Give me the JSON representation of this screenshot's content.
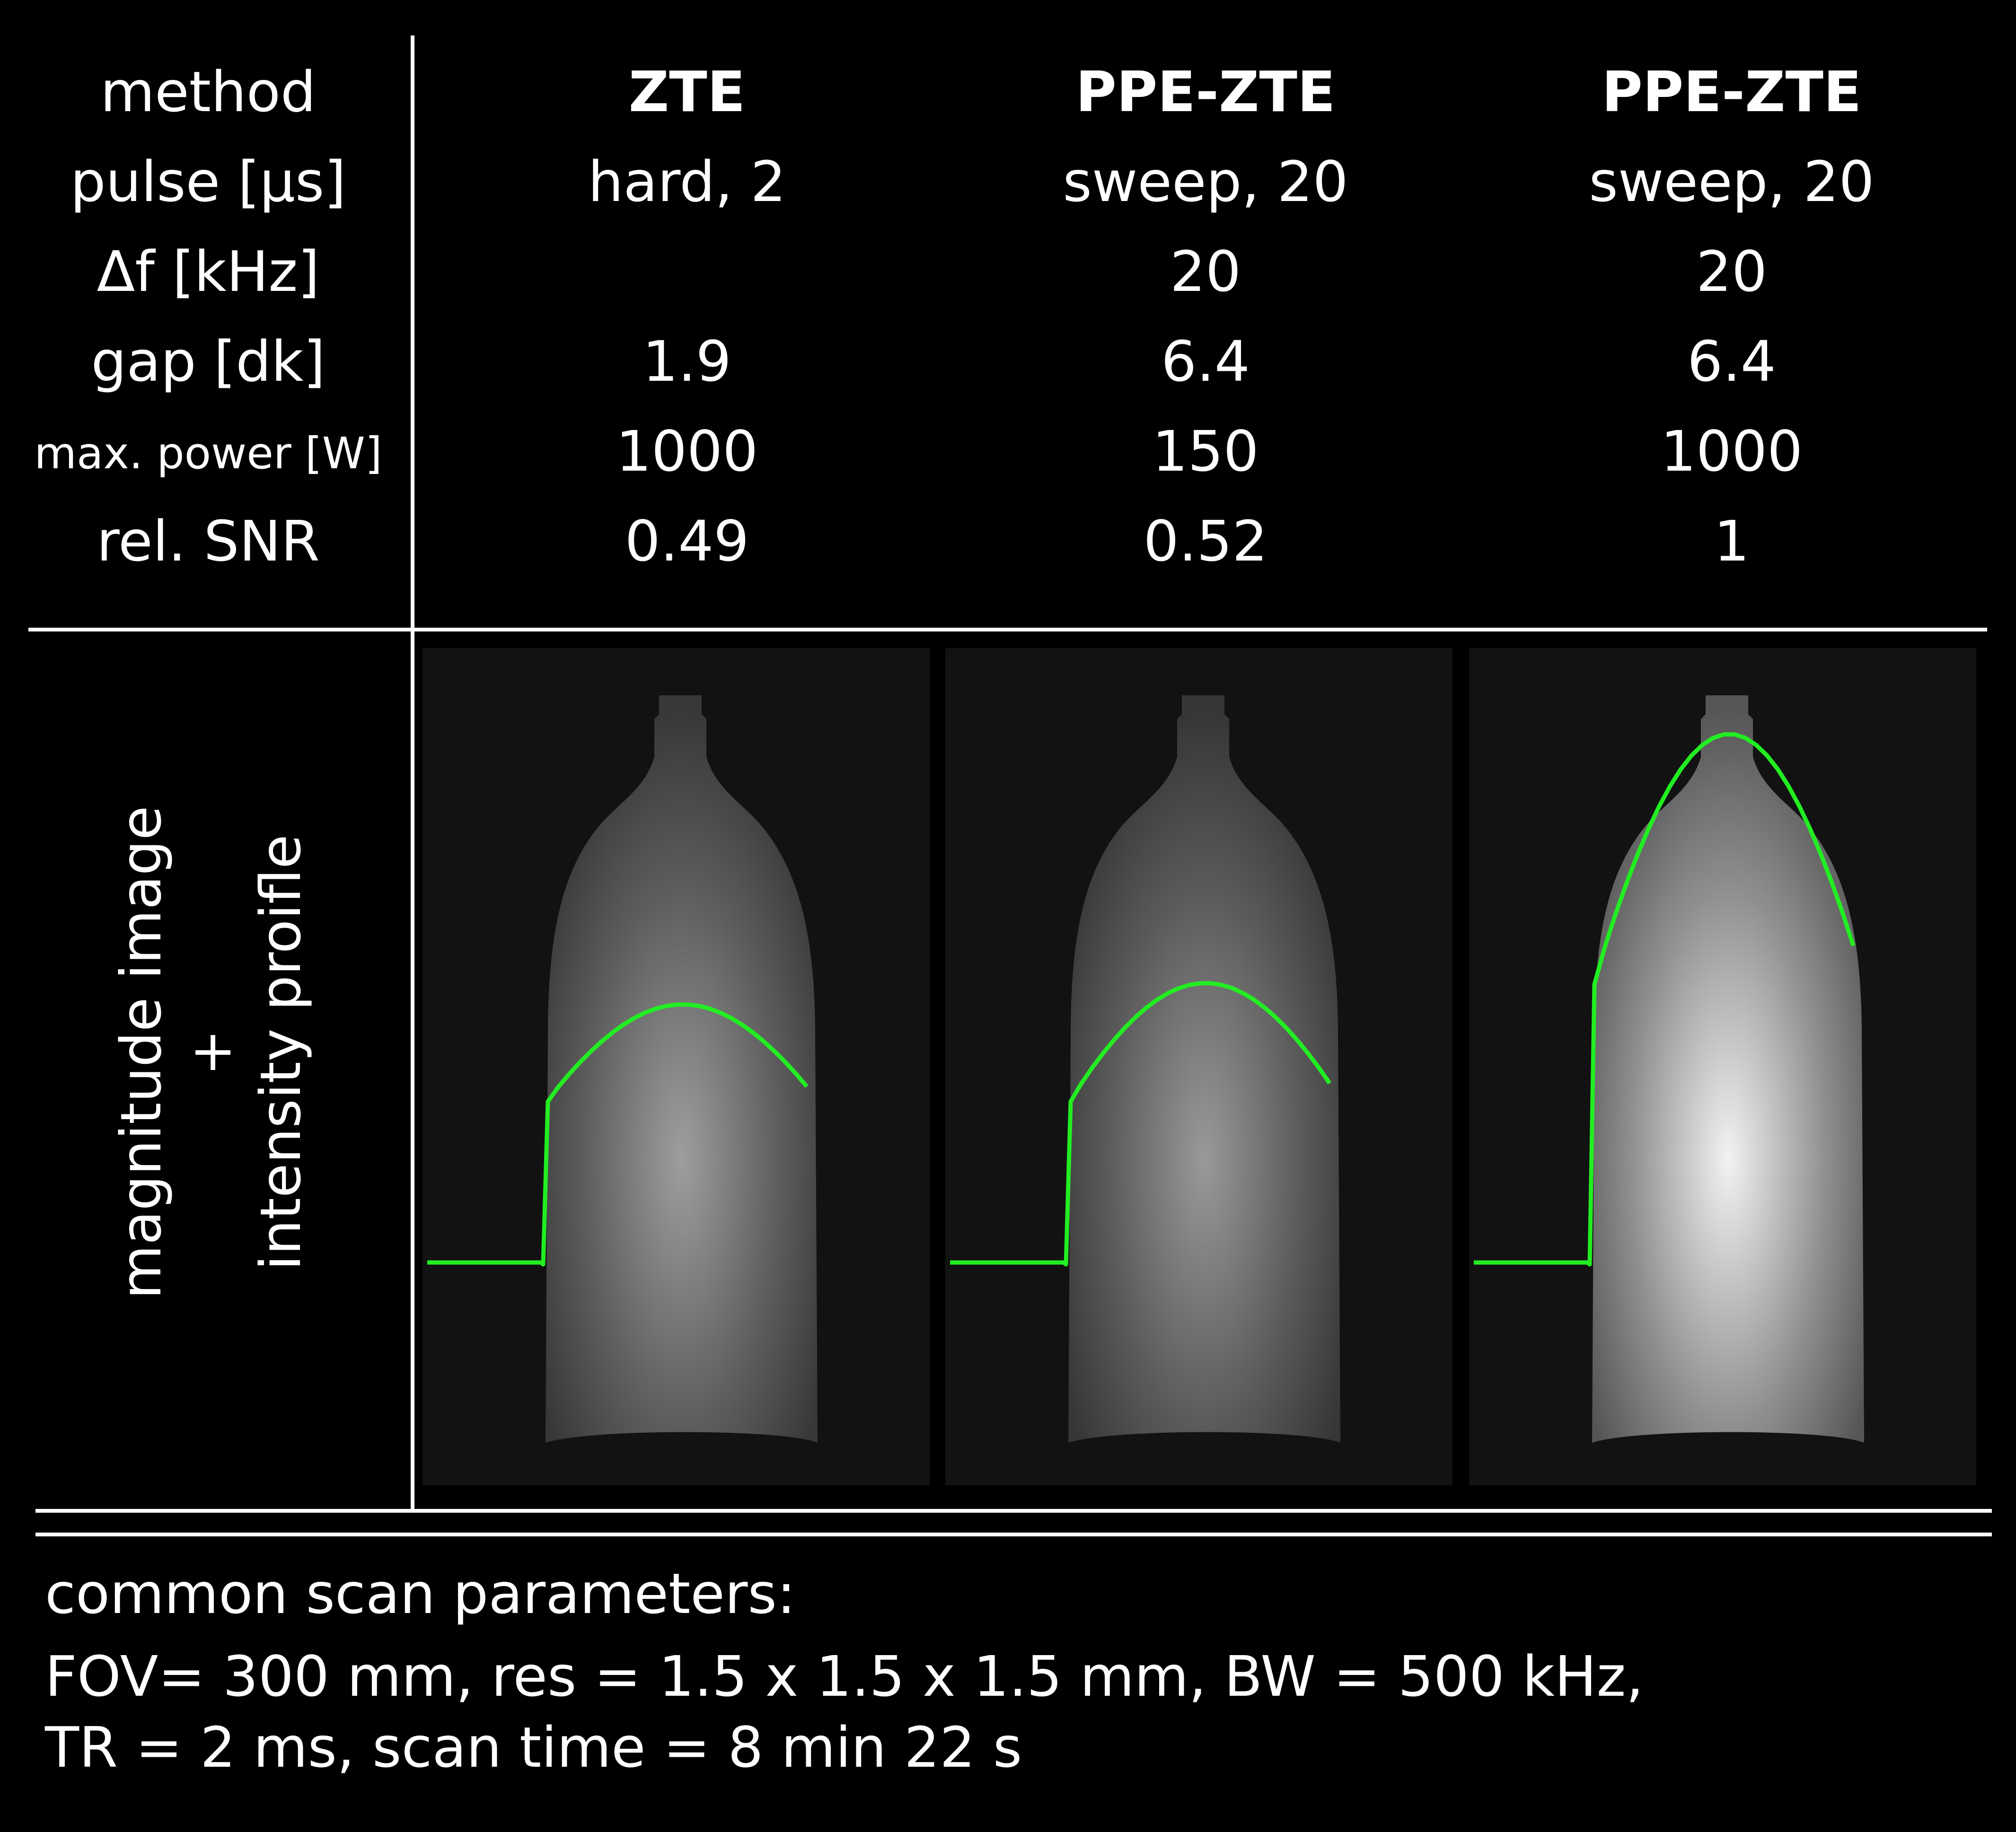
{
  "table": {
    "row_labels": [
      "method",
      "pulse [µs]",
      "Δf [kHz]",
      "gap [dk]",
      "max. power [W]",
      "rel. SNR"
    ],
    "columns": [
      {
        "method": "ZTE",
        "pulse": "hard, 2",
        "df": "",
        "gap": "1.9",
        "power": "1000",
        "snr": "0.49"
      },
      {
        "method": "PPE-ZTE",
        "pulse": "sweep, 20",
        "df": "20",
        "gap": "6.4",
        "power": "150",
        "snr": "0.52"
      },
      {
        "method": "PPE-ZTE",
        "pulse": "sweep, 20",
        "df": "20",
        "gap": "6.4",
        "power": "1000",
        "snr": "1"
      }
    ]
  },
  "image_row": {
    "label_line1": "magnitude image",
    "label_line2": "+",
    "label_line3": "intensity proifle",
    "profile_color": "#22ee22",
    "panels": [
      {
        "brightness": 0.62,
        "profile_peak": 0.36,
        "profile_edge": 0.19
      },
      {
        "brightness": 0.6,
        "profile_peak": 0.39,
        "profile_edge": 0.19
      },
      {
        "brightness": 0.95,
        "profile_peak": 0.74,
        "profile_edge": 0.33
      }
    ]
  },
  "common": {
    "heading": "common scan parameters:",
    "line1": "FOV= 300 mm, res = 1.5 x 1.5 x 1.5 mm, BW = 500 kHz,",
    "line2": "TR = 2 ms, scan time = 8 min 22 s"
  }
}
